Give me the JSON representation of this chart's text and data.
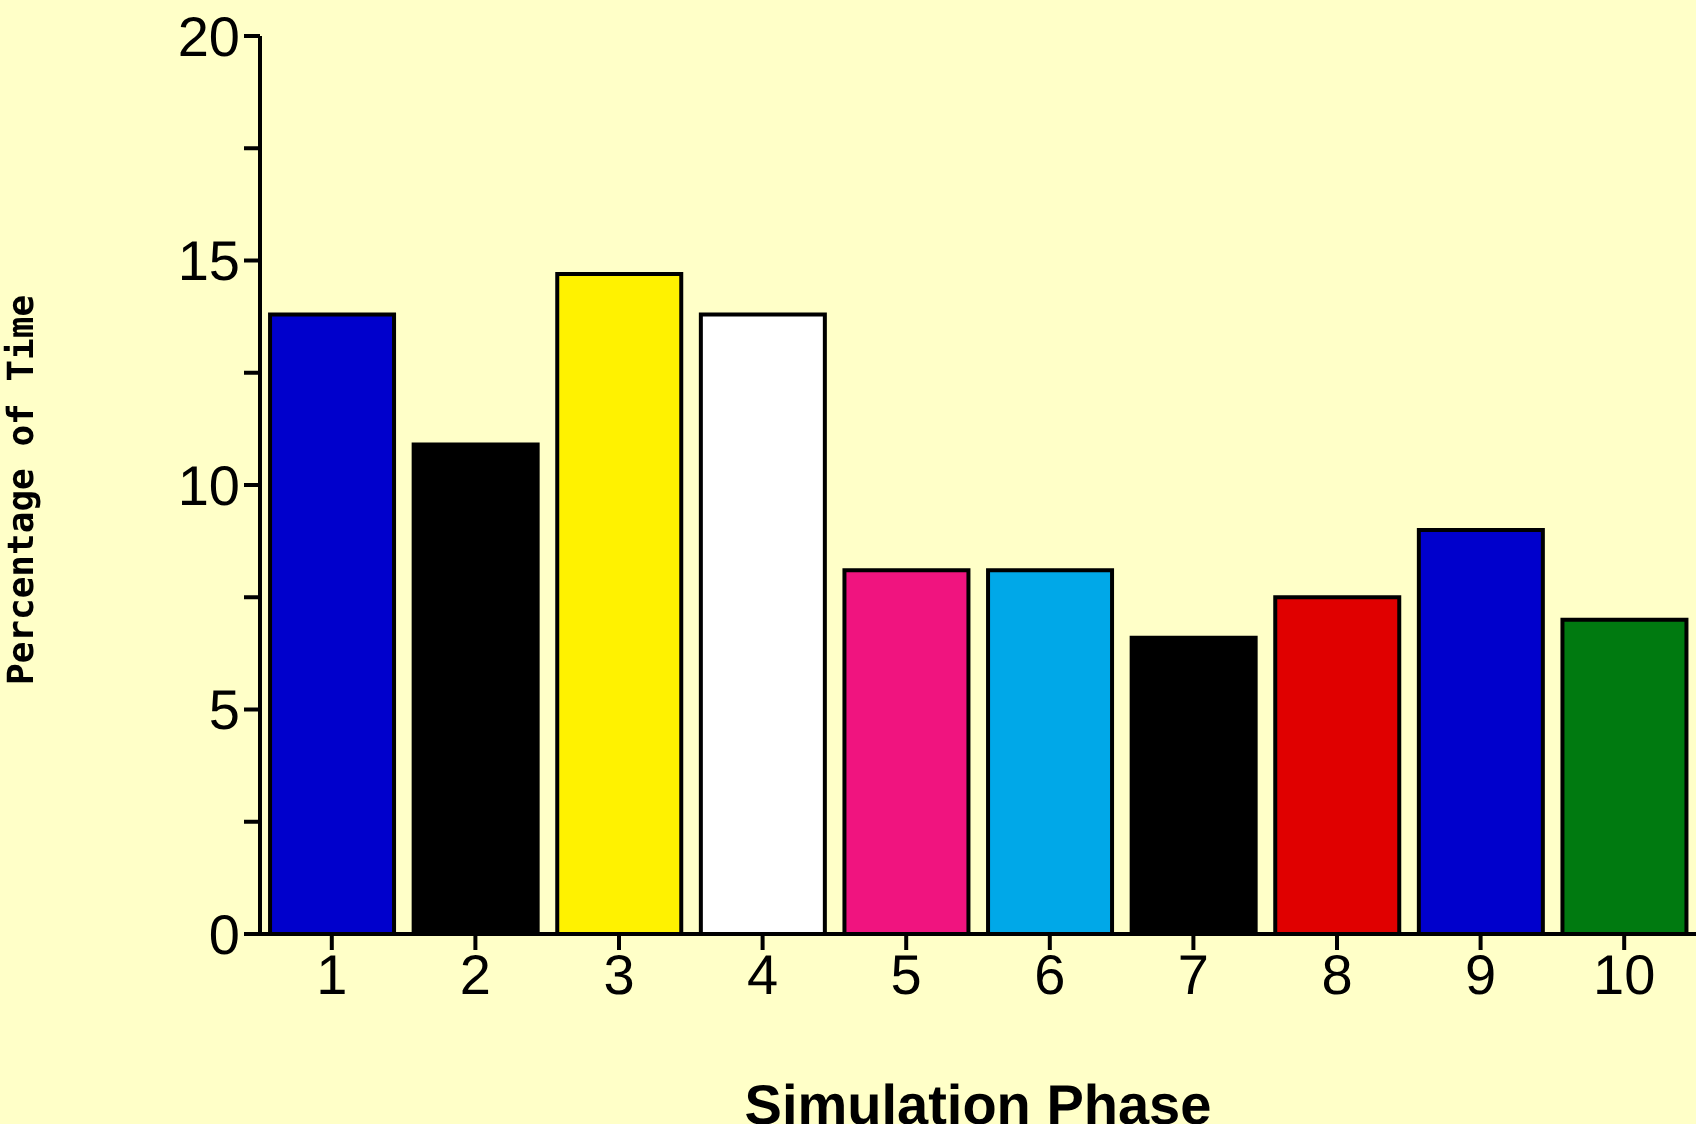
{
  "chart_data": {
    "type": "bar",
    "xlabel": "Simulation Phase",
    "ylabel": "Percentage of Time",
    "categories": [
      "1",
      "2",
      "3",
      "4",
      "5",
      "6",
      "7",
      "8",
      "9",
      "10"
    ],
    "values": [
      13.8,
      10.9,
      14.7,
      13.8,
      8.1,
      8.1,
      6.6,
      7.5,
      9.0,
      7.0
    ],
    "colors": [
      "#0000cc",
      "#000000",
      "#fff200",
      "#ffffff",
      "#f0147f",
      "#00a8e8",
      "#000000",
      "#e00000",
      "#0000cc",
      "#007a10"
    ],
    "ylim": [
      0,
      20
    ],
    "yticks": [
      0,
      {
        "value": 2.5,
        "label": null
      },
      5,
      {
        "value": 7.5,
        "label": null
      },
      10,
      {
        "value": 12.5,
        "label": null
      },
      15,
      {
        "value": 17.5,
        "label": null
      },
      20
    ],
    "grid": false,
    "legend": false
  }
}
